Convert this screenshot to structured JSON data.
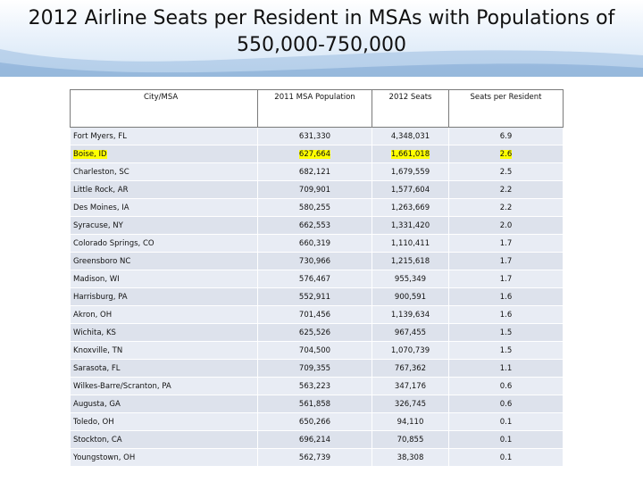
{
  "title": "2012 Airline Seats per Resident in MSAs with Populations of 550,000-750,000",
  "headers": [
    "City/MSA",
    "2011 MSA Population",
    "2012 Seats",
    "Seats per Resident"
  ],
  "rows": [
    {
      "city": "Fort Myers, FL",
      "population": "631,330",
      "seats": "4,348,031",
      "per_resident": "6.9"
    },
    {
      "city": "Boise, ID",
      "population": "627,664",
      "seats": "1,661,018",
      "per_resident": "2.6",
      "highlighted": true
    },
    {
      "city": "Charleston, SC",
      "population": "682,121",
      "seats": "1,679,559",
      "per_resident": "2.5"
    },
    {
      "city": "Little Rock, AR",
      "population": "709,901",
      "seats": "1,577,604",
      "per_resident": "2.2"
    },
    {
      "city": "Des Moines, IA",
      "population": "580,255",
      "seats": "1,263,669",
      "per_resident": "2.2"
    },
    {
      "city": "Syracuse, NY",
      "population": "662,553",
      "seats": "1,331,420",
      "per_resident": "2.0"
    },
    {
      "city": "Colorado Springs, CO",
      "population": "660,319",
      "seats": "1,110,411",
      "per_resident": "1.7"
    },
    {
      "city": "Greensboro NC",
      "population": "730,966",
      "seats": "1,215,618",
      "per_resident": "1.7"
    },
    {
      "city": "Madison, WI",
      "population": "576,467",
      "seats": "955,349",
      "per_resident": "1.7"
    },
    {
      "city": "Harrisburg, PA",
      "population": "552,911",
      "seats": "900,591",
      "per_resident": "1.6"
    },
    {
      "city": "Akron, OH",
      "population": "701,456",
      "seats": "1,139,634",
      "per_resident": "1.6"
    },
    {
      "city": "Wichita, KS",
      "population": "625,526",
      "seats": "967,455",
      "per_resident": "1.5"
    },
    {
      "city": "Knoxville, TN",
      "population": "704,500",
      "seats": "1,070,739",
      "per_resident": "1.5"
    },
    {
      "city": "Sarasota, FL",
      "population": "709,355",
      "seats": "767,362",
      "per_resident": "1.1"
    },
    {
      "city": "Wilkes-Barre/Scranton, PA",
      "population": "563,223",
      "seats": "347,176",
      "per_resident": "0.6"
    },
    {
      "city": "Augusta, GA",
      "population": "561,858",
      "seats": "326,745",
      "per_resident": "0.6"
    },
    {
      "city": "Toledo, OH",
      "population": "650,266",
      "seats": "94,110",
      "per_resident": "0.1"
    },
    {
      "city": "Stockton, CA",
      "population": "696,214",
      "seats": "70,855",
      "per_resident": "0.1"
    },
    {
      "city": "Youngstown, OH",
      "population": "562,739",
      "seats": "38,308",
      "per_resident": "0.1"
    }
  ]
}
